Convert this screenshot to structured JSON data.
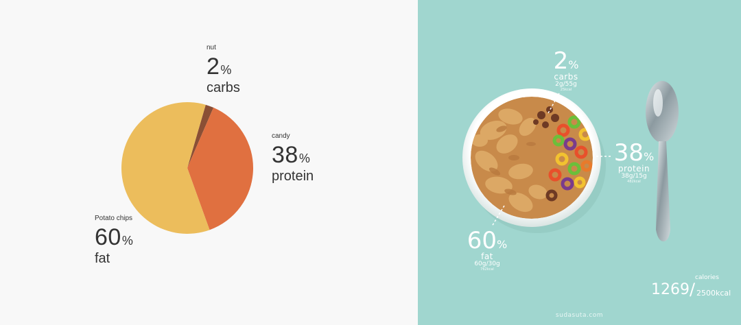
{
  "chart_data": {
    "type": "pie",
    "slices": [
      {
        "name": "nut",
        "nutrient": "carbs",
        "value": 2,
        "color": "#8a4f35"
      },
      {
        "name": "candy",
        "nutrient": "protein",
        "value": 38,
        "color": "#e07040"
      },
      {
        "name": "Potato chips",
        "nutrient": "fat",
        "value": 60,
        "color": "#ecbd5c"
      }
    ],
    "unit": "%"
  },
  "labels": {
    "nut": {
      "name": "nut",
      "num": "2",
      "unit": "%",
      "nutrient": "carbs"
    },
    "candy": {
      "name": "candy",
      "num": "38",
      "unit": "%",
      "nutrient": "protein"
    },
    "chips": {
      "name": "Potato chips",
      "num": "60",
      "unit": "%",
      "nutrient": "fat"
    }
  },
  "photo": {
    "background": "#a0d6cf",
    "carbs": {
      "num": "2",
      "unit": "%",
      "name": "carbs",
      "sub": "2g/55g",
      "tiny": "25kcal"
    },
    "protein": {
      "num": "38",
      "unit": "%",
      "name": "protein",
      "sub": "38g/15g",
      "tiny": "482kcal"
    },
    "fat": {
      "num": "60",
      "unit": "%",
      "name": "fat",
      "sub": "60g/30g",
      "tiny": "762kcal"
    },
    "calories": {
      "label": "calories",
      "value": "1269",
      "slash": "/",
      "total": "2500kcal"
    },
    "watermark": "sudasuta.com"
  }
}
